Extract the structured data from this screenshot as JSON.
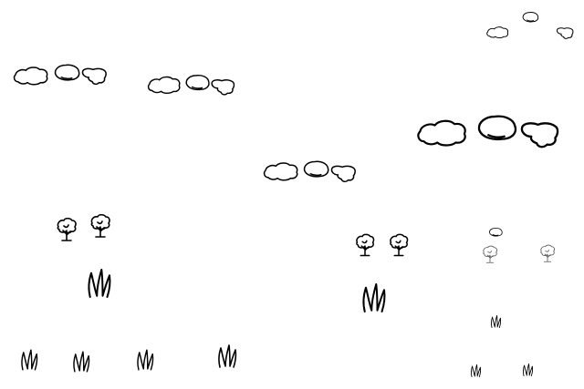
{
  "image": {
    "kind": "line-drawing",
    "background_color": "#ffffff",
    "stroke_color": "#000000",
    "subjects": [
      "cloud-icon",
      "tree-icon",
      "grass-icon"
    ]
  }
}
